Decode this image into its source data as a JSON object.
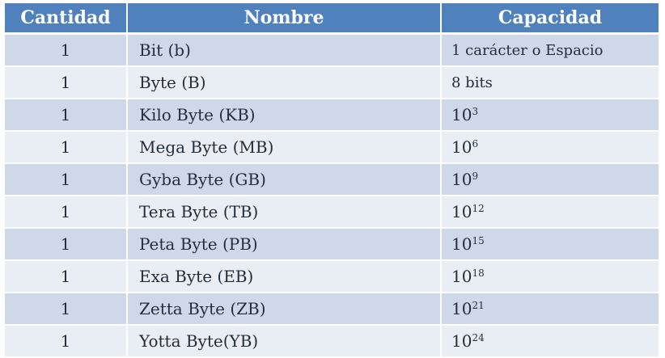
{
  "headers": {
    "cantidad": "Cantidad",
    "nombre": "Nombre",
    "capacidad": "Capacidad"
  },
  "rows": [
    {
      "cantidad": "1",
      "nombre": "Bit (b)",
      "capacidad": "1 carácter o Espacio"
    },
    {
      "cantidad": "1",
      "nombre": "Byte (B)",
      "capacidad": "8 bits"
    },
    {
      "cantidad": "1",
      "nombre": "Kilo Byte (KB)",
      "base": "10",
      "exp": "3"
    },
    {
      "cantidad": "1",
      "nombre": "Mega Byte (MB)",
      "base": "10",
      "exp": "6"
    },
    {
      "cantidad": "1",
      "nombre": "Gyba Byte (GB)",
      "base": "10",
      "exp": "9"
    },
    {
      "cantidad": "1",
      "nombre": "Tera Byte (TB)",
      "base": "10",
      "exp": "12"
    },
    {
      "cantidad": "1",
      "nombre": "Peta Byte (PB)",
      "base": "10",
      "exp": "15"
    },
    {
      "cantidad": "1",
      "nombre": "Exa Byte (EB)",
      "base": "10",
      "exp": "18"
    },
    {
      "cantidad": "1",
      "nombre": "Zetta Byte (ZB)",
      "base": "10",
      "exp": "21"
    },
    {
      "cantidad": "1",
      "nombre": "Yotta Byte(YB)",
      "base": "10",
      "exp": "24"
    }
  ],
  "colors": {
    "header_bg": "#4f81bd",
    "row_odd_bg": "#cfd8e8",
    "row_even_bg": "#e9edf4"
  }
}
